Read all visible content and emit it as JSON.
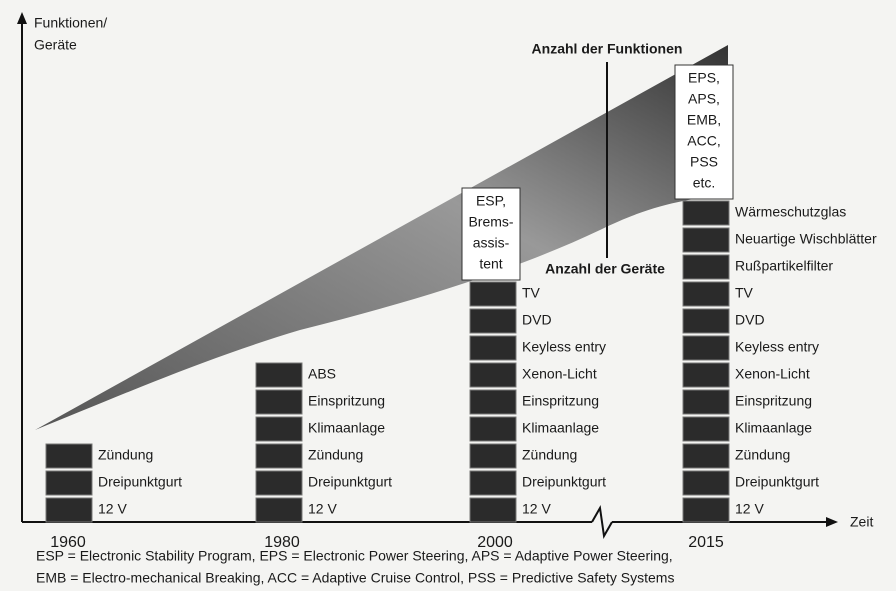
{
  "axis": {
    "y_label": [
      "Funktionen/",
      "Geräte"
    ],
    "x_label": "Zeit"
  },
  "curves": {
    "functions": "Anzahl der Funktionen",
    "devices": "Anzahl der Geräte"
  },
  "columns": [
    {
      "year": "1960",
      "items": [
        "Zündung",
        "Dreipunktgurt",
        "12 V"
      ]
    },
    {
      "year": "1980",
      "items": [
        "ABS",
        "Einspritzung",
        "Klimaanlage",
        "Zündung",
        "Dreipunktgurt",
        "12 V"
      ]
    },
    {
      "year": "2000",
      "box": [
        "ESP,",
        "Brems-",
        "assis-",
        "tent"
      ],
      "items": [
        "TV",
        "DVD",
        "Keyless entry",
        "Xenon-Licht",
        "Einspritzung",
        "Klimaanlage",
        "Zündung",
        "Dreipunktgurt",
        "12 V"
      ]
    },
    {
      "year": "2015",
      "box": [
        "EPS,",
        "APS,",
        "EMB,",
        "ACC,",
        "PSS",
        "etc."
      ],
      "items": [
        "Wärmeschutzglas",
        "Neuartige Wischblätter",
        "Rußpartikelfilter",
        "TV",
        "DVD",
        "Keyless entry",
        "Xenon-Licht",
        "Einspritzung",
        "Klimaanlage",
        "Zündung",
        "Dreipunktgurt",
        "12 V"
      ]
    }
  ],
  "footnote": [
    "ESP = Electronic Stability Program, EPS = Electronic Power Steering, APS = Adaptive Power Steering,",
    "EMB = Electro-mechanical Breaking, ACC = Adaptive Cruise Control, PSS = Predictive Safety Systems"
  ]
}
